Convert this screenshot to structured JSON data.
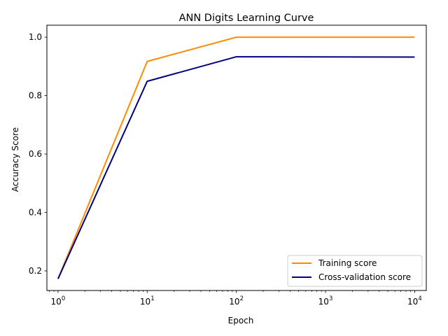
{
  "chart_data": {
    "type": "line",
    "title": "ANN Digits Learning Curve",
    "xlabel": "Epoch",
    "ylabel": "Accuracy Score",
    "xscale": "log",
    "x": [
      1,
      10,
      100,
      10000
    ],
    "xlim": [
      0.75,
      13500
    ],
    "ylim": [
      0.133,
      1.041
    ],
    "xticks": [
      {
        "value": 1,
        "base": "10",
        "exp": "0"
      },
      {
        "value": 10,
        "base": "10",
        "exp": "1"
      },
      {
        "value": 100,
        "base": "10",
        "exp": "2"
      },
      {
        "value": 1000,
        "base": "10",
        "exp": "3"
      },
      {
        "value": 10000,
        "base": "10",
        "exp": "4"
      }
    ],
    "yticks": [
      {
        "value": 0.2,
        "label": "0.2"
      },
      {
        "value": 0.4,
        "label": "0.4"
      },
      {
        "value": 0.6,
        "label": "0.6"
      },
      {
        "value": 0.8,
        "label": "0.8"
      },
      {
        "value": 1.0,
        "label": "1.0"
      }
    ],
    "series": [
      {
        "name": "Training score",
        "color": "#ff8c00",
        "values": [
          0.173,
          0.917,
          1.0,
          1.0
        ]
      },
      {
        "name": "Cross-validation score",
        "color": "#000080",
        "values": [
          0.173,
          0.849,
          0.933,
          0.932
        ]
      }
    ],
    "grid": false,
    "legend_position": "lower right"
  }
}
